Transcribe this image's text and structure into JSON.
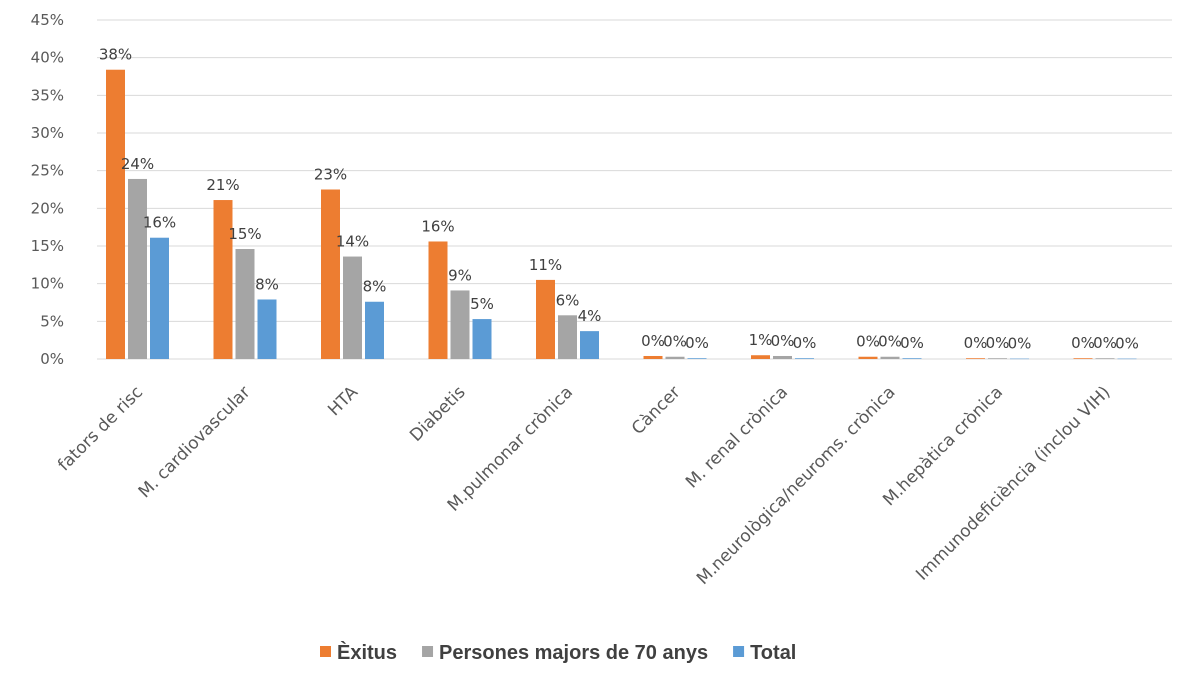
{
  "chart_data": {
    "type": "bar",
    "categories": [
      "fators de risc",
      "M. cardiovascular",
      "HTA",
      "Diabetis",
      "M.pulmonar crònica",
      "Càncer",
      "M. renal crònica",
      "M.neurològica/neuroms. crònica",
      "M.hepàtica crònica",
      "Immunodeficiència (inclou VIH)"
    ],
    "series": [
      {
        "name": "Èxitus",
        "color": "#ed7d31",
        "values": [
          38.4,
          21.1,
          22.5,
          15.6,
          10.5,
          0.4,
          0.5,
          0.3,
          0.1,
          0.1
        ],
        "labels": [
          "38%",
          "21%",
          "23%",
          "16%",
          "11%",
          "0%",
          "1%",
          "0%",
          "0%",
          "0%"
        ]
      },
      {
        "name": "Persones majors de 70 anys",
        "color": "#a5a5a5",
        "values": [
          23.9,
          14.6,
          13.6,
          9.1,
          5.8,
          0.3,
          0.4,
          0.3,
          0.1,
          0.1
        ],
        "labels": [
          "24%",
          "15%",
          "14%",
          "9%",
          "6%",
          "0%",
          "0%",
          "0%",
          "0%",
          "0%"
        ]
      },
      {
        "name": "Total",
        "color": "#5b9bd5",
        "values": [
          16.1,
          7.9,
          7.6,
          5.3,
          3.7,
          0.1,
          0.1,
          0.1,
          0.05,
          0.05
        ],
        "labels": [
          "16%",
          "8%",
          "8%",
          "5%",
          "4%",
          "0%",
          "0%",
          "0%",
          "0%",
          "0%"
        ]
      }
    ],
    "ylim": [
      0,
      45
    ],
    "yticks": [
      0,
      5,
      10,
      15,
      20,
      25,
      30,
      35,
      40,
      45
    ],
    "ytick_labels": [
      "0%",
      "5%",
      "10%",
      "15%",
      "20%",
      "25%",
      "30%",
      "35%",
      "40%",
      "45%"
    ],
    "grid": true,
    "legend": "bottom-center",
    "title": "",
    "xlabel": "",
    "ylabel": ""
  }
}
